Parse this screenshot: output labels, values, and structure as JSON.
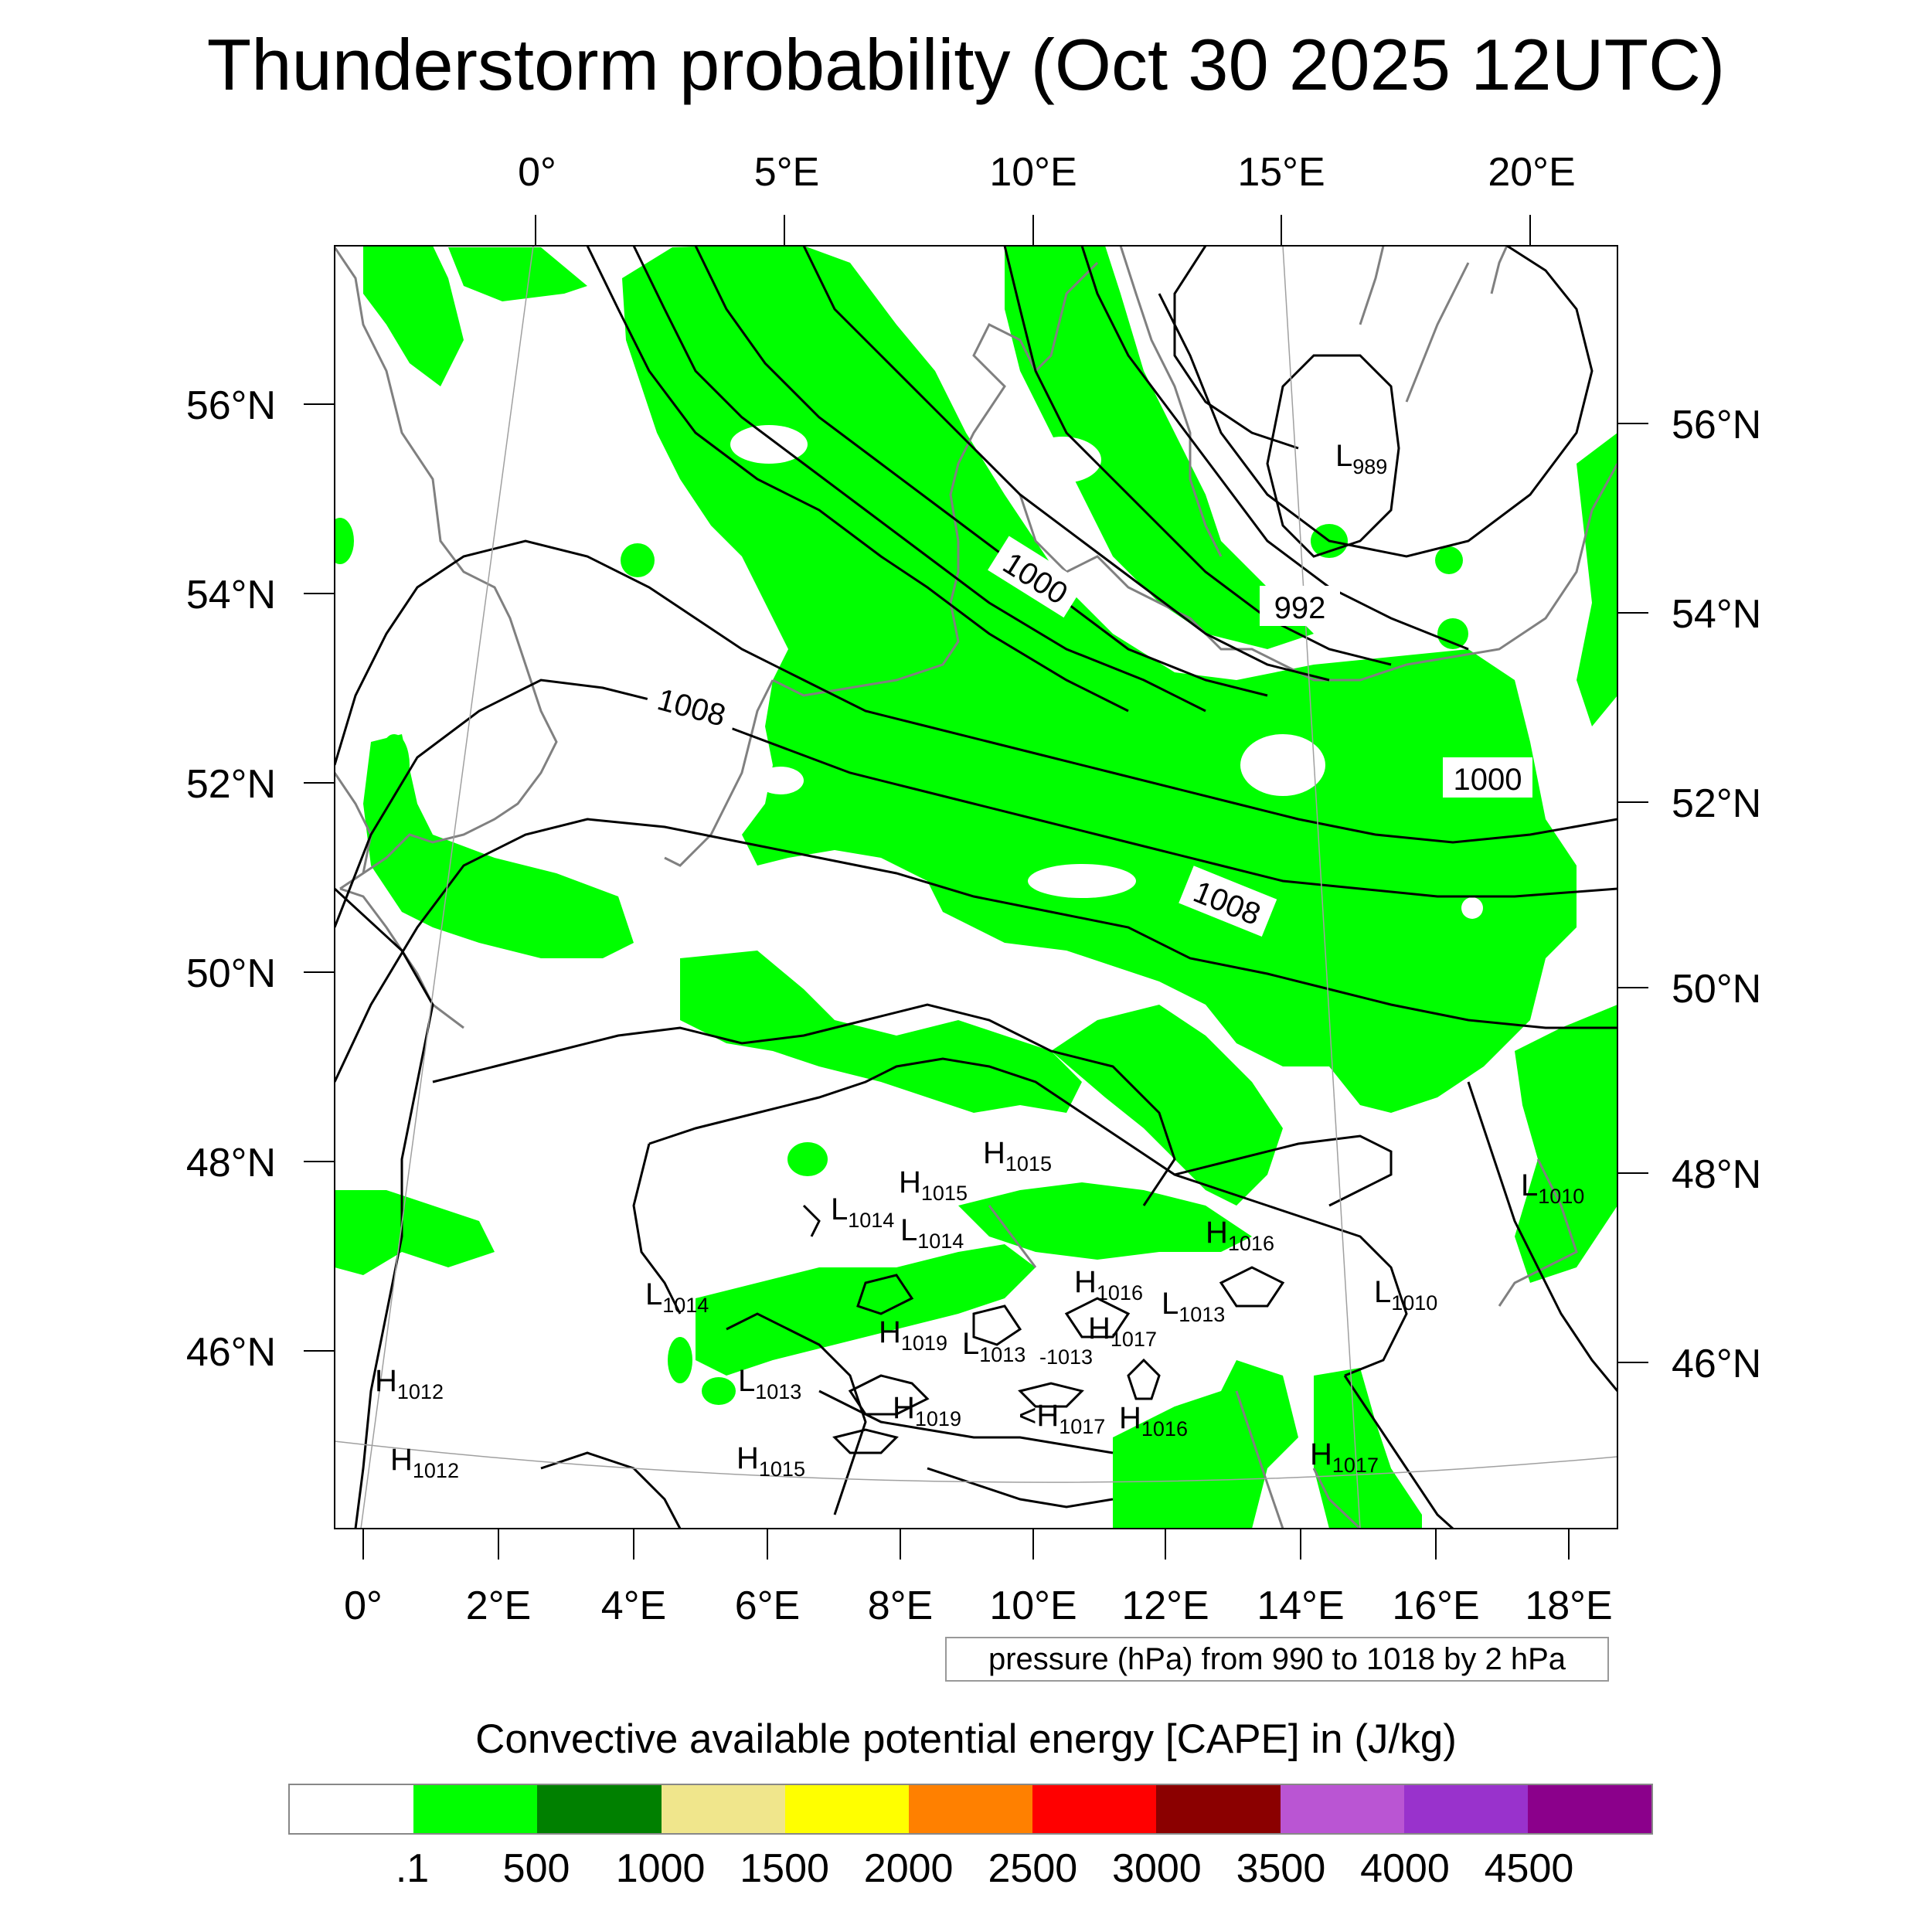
{
  "title": "Thunderstorm probability (Oct 30 2025 12UTC)",
  "top_lon_labels": [
    "0°",
    "5°E",
    "10°E",
    "15°E",
    "20°E"
  ],
  "bottom_lon_labels": [
    "0°",
    "2°E",
    "4°E",
    "6°E",
    "8°E",
    "10°E",
    "12°E",
    "14°E",
    "16°E",
    "18°E"
  ],
  "left_lat_labels": [
    "56°N",
    "54°N",
    "52°N",
    "50°N",
    "48°N",
    "46°N"
  ],
  "right_lat_labels": [
    "56°N",
    "54°N",
    "52°N",
    "50°N",
    "48°N",
    "46°N"
  ],
  "contour_labels": [
    "1000",
    "992",
    "1008",
    "1000",
    "1008"
  ],
  "pressure_centers": [
    {
      "type": "L",
      "value": "989"
    },
    {
      "type": "H",
      "value": "1015"
    },
    {
      "type": "H",
      "value": "1015"
    },
    {
      "type": "L",
      "value": "1014"
    },
    {
      "type": "L",
      "value": "1014"
    },
    {
      "type": "H",
      "value": "1016"
    },
    {
      "type": "L",
      "value": "1010"
    },
    {
      "type": "L",
      "value": "1014"
    },
    {
      "type": "H",
      "value": "1016"
    },
    {
      "type": "L",
      "value": "1013"
    },
    {
      "type": "L",
      "value": "1010"
    },
    {
      "type": "H",
      "value": "1019"
    },
    {
      "type": "L",
      "value": "1013"
    },
    {
      "type": "L",
      "value": "1013"
    },
    {
      "type": "H",
      "value": "1017"
    },
    {
      "type": "H",
      "value": "1012"
    },
    {
      "type": "L",
      "value": "1013"
    },
    {
      "type": "H",
      "value": "1019"
    },
    {
      "type": "H",
      "value": "1017"
    },
    {
      "type": "H",
      "value": "1016"
    },
    {
      "type": "H",
      "value": "1012"
    },
    {
      "type": "H",
      "value": "1015"
    },
    {
      "type": "H",
      "value": "1017"
    }
  ],
  "pressure_note": "pressure (hPa) from 990 to 1018 by 2 hPa",
  "colorbar_title": "Convective available potential energy [CAPE] in (J/kg)",
  "colorbar_colors": [
    "#ffffff",
    "#00ff00",
    "#008000",
    "#f0e68c",
    "#ffff00",
    "#ff8000",
    "#ff0000",
    "#8b0000",
    "#ba55d3",
    "#9932cc",
    "#8b008b"
  ],
  "colorbar_labels": [
    ".1",
    "500",
    "1000",
    "1500",
    "2000",
    "2500",
    "3000",
    "3500",
    "4000",
    "4500"
  ],
  "colors": {
    "cape_green": "#00ff00",
    "coastline": "#808080",
    "isobar": "#000000"
  }
}
